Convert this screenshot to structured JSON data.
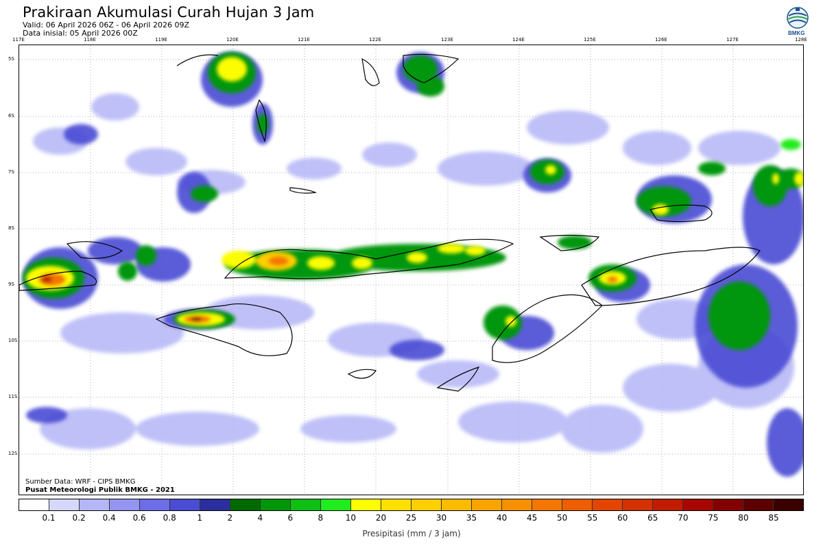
{
  "header": {
    "title": "Prakiraan Akumulasi Curah Hujan 3 Jam",
    "valid": "Valid: 06 April 2026 06Z - 06 April 2026 09Z",
    "initial": "Data inisial: 05 April 2026 00Z"
  },
  "logo": {
    "text": "BMKG",
    "icon": "bmkg-logo-icon"
  },
  "map": {
    "lon_labels": [
      "117E",
      "118E",
      "119E",
      "120E",
      "121E",
      "122E",
      "123E",
      "124E",
      "125E",
      "126E",
      "127E",
      "128E"
    ],
    "lat_labels": [
      "5S",
      "6S",
      "7S",
      "8S",
      "9S",
      "10S",
      "11S",
      "12S"
    ],
    "gridlines": "dotted"
  },
  "credits": {
    "source": "Sumber Data: WRF - CIPS BMKG",
    "center": "Pusat Meteorologi Publik BMKG - 2021"
  },
  "legend": {
    "title": "Presipitasi (mm / 3 jam)",
    "ticks": [
      "0.1",
      "0.2",
      "0.4",
      "0.6",
      "0.8",
      "1",
      "2",
      "4",
      "6",
      "8",
      "10",
      "20",
      "25",
      "30",
      "35",
      "40",
      "45",
      "50",
      "55",
      "60",
      "65",
      "70",
      "75",
      "80",
      "85"
    ],
    "colors": [
      "#ffffff",
      "#d6d8fb",
      "#b4b6f6",
      "#9395f1",
      "#6c6ee8",
      "#4a4cd4",
      "#2b2f9e",
      "#006a00",
      "#00960a",
      "#0fbf14",
      "#20ec1e",
      "#fcfd03",
      "#fde001",
      "#fdcf00",
      "#fbbb00",
      "#f9a400",
      "#f69000",
      "#f37700",
      "#ec5e00",
      "#e24500",
      "#d43200",
      "#c21c00",
      "#a80600",
      "#840000",
      "#5c0000",
      "#3a0000"
    ]
  }
}
